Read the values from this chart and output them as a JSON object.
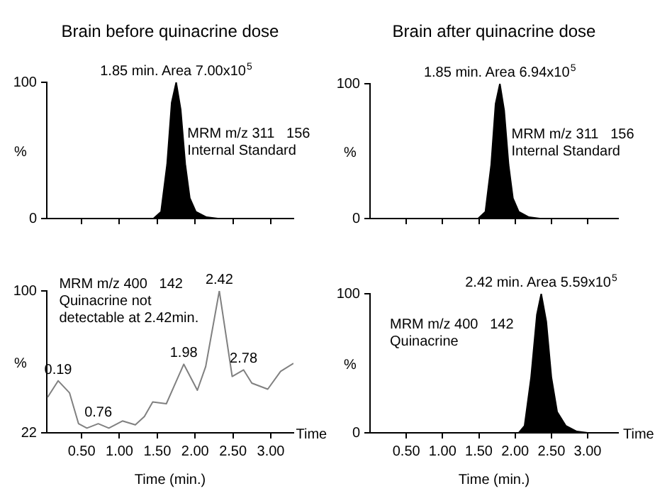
{
  "chart_data": [
    {
      "type": "area",
      "title": "Brain before quinacrine dose",
      "ylabel": "%",
      "color": "#000000",
      "x": [
        0.04,
        1.45,
        1.55,
        1.63,
        1.69,
        1.75,
        1.81,
        1.87,
        1.93,
        2.01,
        2.15,
        2.3,
        3.3
      ],
      "values": [
        0,
        0,
        5,
        40,
        85,
        100,
        80,
        40,
        15,
        5,
        1,
        0,
        0
      ],
      "xlim": [
        0.04,
        3.3
      ],
      "ylim": [
        0,
        100
      ],
      "xticks": [
        {
          "value": 0.5,
          "label": null
        },
        {
          "value": 1,
          "label": null
        },
        {
          "value": 1.5,
          "label": null
        },
        {
          "value": 2,
          "label": null
        },
        {
          "value": 2.5,
          "label": null
        },
        {
          "value": 3,
          "label": null
        }
      ],
      "yticks": [
        0,
        100
      ],
      "tick_labels": "y",
      "annotations": [
        {
          "text": "1.85 min. Area 7.00x10$^{5}$",
          "x": 1.75,
          "y": 100
        },
        "MRM m/z 311   156",
        "Internal Standard"
      ]
    },
    {
      "type": "area",
      "title": "Brain after quinacrine dose",
      "ylabel": "%",
      "color": "#000000",
      "x": [
        0,
        1.49,
        1.59,
        1.67,
        1.73,
        1.79,
        1.85,
        1.91,
        1.97,
        2.05,
        2.19,
        2.34,
        3.42
      ],
      "values": [
        0,
        0,
        5,
        40,
        85,
        100,
        80,
        40,
        15,
        5,
        1,
        0,
        0
      ],
      "xlim": [
        0,
        3.42
      ],
      "ylim": [
        0,
        100
      ],
      "xticks": [
        {
          "value": 0.5,
          "label": null
        },
        {
          "value": 1,
          "label": null
        },
        {
          "value": 1.5,
          "label": null
        },
        {
          "value": 2,
          "label": null
        },
        {
          "value": 2.5,
          "label": null
        },
        {
          "value": 3,
          "label": null
        }
      ],
      "yticks": [
        0,
        100
      ],
      "tick_labels": "y",
      "annotations": [
        {
          "text": "1.85 min. Area 6.94x10$^{5}$",
          "x": 1.79,
          "y": 100
        },
        "MRM m/z 311   156",
        "Internal Standard"
      ]
    },
    {
      "type": "line",
      "xlabel": "Time (min.)",
      "ylabel": "%",
      "color": "#808080",
      "x": [
        0.05,
        0.19,
        0.34,
        0.46,
        0.57,
        0.72,
        0.86,
        1.04,
        1.21,
        1.33,
        1.44,
        1.62,
        1.85,
        2.03,
        2.14,
        2.32,
        2.49,
        2.64,
        2.75,
        2.96,
        3.13,
        3.3
      ],
      "values": [
        41.5,
        50.6,
        44,
        27,
        24.6,
        27,
        24.6,
        28.5,
        26.4,
        31,
        39,
        38,
        59.7,
        45.4,
        58.4,
        100,
        53,
        56.6,
        49.3,
        46,
        55.8,
        60.2
      ],
      "xlim": [
        0.04,
        3.3
      ],
      "ylim": [
        22,
        100
      ],
      "xticks": [
        {
          "value": 0.5,
          "label": "0.50"
        },
        {
          "value": 1,
          "label": "1.00"
        },
        {
          "value": 1.5,
          "label": "1.50"
        },
        {
          "value": 2,
          "label": "2.00"
        },
        {
          "value": 2.5,
          "label": "2.50"
        },
        {
          "value": 3,
          "label": "3.00"
        }
      ],
      "yticks": [
        22,
        100
      ],
      "annotations": [
        {
          "text": "0.19",
          "x": 0.19,
          "y": 50.6
        },
        {
          "text": "0.76",
          "x": 0.72,
          "y": 27
        },
        {
          "text": "1.98",
          "x": 1.85,
          "y": 59.7
        },
        {
          "text": "2.42",
          "x": 2.32,
          "y": 100
        },
        {
          "text": "2.78",
          "x": 2.64,
          "y": 56.6
        },
        "MRM m/z 400   142",
        "Quinacrine not",
        "detectable at 2.42min.",
        "Time"
      ]
    },
    {
      "type": "area",
      "xlabel": "Time (min.)",
      "ylabel": "%",
      "color": "#000000",
      "x": [
        0,
        2.05,
        2.13,
        2.22,
        2.3,
        2.36,
        2.43,
        2.5,
        2.58,
        2.7,
        2.85,
        3.0,
        3.42
      ],
      "values": [
        0,
        0,
        5,
        40,
        85,
        100,
        80,
        40,
        15,
        5,
        1,
        0,
        0
      ],
      "xlim": [
        0,
        3.42
      ],
      "ylim": [
        0,
        100
      ],
      "xticks": [
        {
          "value": 0.5,
          "label": "0.50"
        },
        {
          "value": 1,
          "label": "1.00"
        },
        {
          "value": 1.5,
          "label": "1.50"
        },
        {
          "value": 2,
          "label": "2.00"
        },
        {
          "value": 2.5,
          "label": "2.50"
        },
        {
          "value": 3,
          "label": "3.00"
        }
      ],
      "yticks": [
        0,
        100
      ],
      "annotations": [
        {
          "text": "2.42 min. Area 5.59x10$^{5}$",
          "x": 2.36,
          "y": 100
        },
        "MRM m/z 400   142",
        "Quinacrine",
        "Time"
      ]
    }
  ]
}
